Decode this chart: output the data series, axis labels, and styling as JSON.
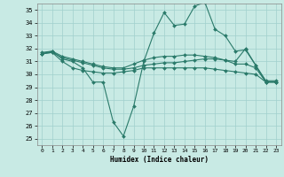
{
  "xlabel": "Humidex (Indice chaleur)",
  "ylabel": "",
  "bg_color": "#c8eae4",
  "grid_color": "#a0d0cc",
  "line_color": "#2a7a6a",
  "xlim": [
    -0.5,
    23.5
  ],
  "ylim": [
    24.5,
    35.5
  ],
  "yticks": [
    25,
    26,
    27,
    28,
    29,
    30,
    31,
    32,
    33,
    34,
    35
  ],
  "xticks": [
    0,
    1,
    2,
    3,
    4,
    5,
    6,
    7,
    8,
    9,
    10,
    11,
    12,
    13,
    14,
    15,
    16,
    17,
    18,
    19,
    20,
    21,
    22,
    23
  ],
  "lines": [
    {
      "x": [
        0,
        1,
        2,
        3,
        4,
        5,
        6,
        7,
        8,
        9,
        10,
        11,
        12,
        13,
        14,
        15,
        16,
        17,
        18,
        19,
        20,
        21,
        22,
        23
      ],
      "y": [
        31.7,
        31.8,
        31.2,
        31.0,
        30.5,
        29.4,
        29.4,
        26.3,
        25.2,
        27.5,
        31.0,
        33.2,
        34.8,
        33.8,
        33.9,
        35.3,
        35.6,
        33.5,
        33.0,
        31.8,
        31.9,
        30.7,
        29.4,
        29.4
      ]
    },
    {
      "x": [
        0,
        1,
        2,
        3,
        4,
        5,
        6,
        7,
        8,
        9,
        10,
        11,
        12,
        13,
        14,
        15,
        16,
        17,
        18,
        19,
        20,
        21,
        22,
        23
      ],
      "y": [
        31.6,
        31.8,
        31.4,
        31.2,
        31.0,
        30.8,
        30.6,
        30.5,
        30.5,
        30.8,
        31.1,
        31.3,
        31.4,
        31.4,
        31.5,
        31.5,
        31.4,
        31.3,
        31.1,
        31.0,
        32.0,
        30.7,
        29.5,
        29.5
      ]
    },
    {
      "x": [
        0,
        1,
        2,
        3,
        4,
        5,
        6,
        7,
        8,
        9,
        10,
        11,
        12,
        13,
        14,
        15,
        16,
        17,
        18,
        19,
        20,
        21,
        22,
        23
      ],
      "y": [
        31.6,
        31.7,
        31.3,
        31.1,
        30.9,
        30.7,
        30.5,
        30.4,
        30.4,
        30.5,
        30.7,
        30.8,
        30.9,
        30.9,
        31.0,
        31.1,
        31.2,
        31.2,
        31.1,
        30.8,
        30.8,
        30.5,
        29.4,
        29.4
      ]
    },
    {
      "x": [
        0,
        1,
        2,
        3,
        4,
        5,
        6,
        7,
        8,
        9,
        10,
        11,
        12,
        13,
        14,
        15,
        16,
        17,
        18,
        19,
        20,
        21,
        22,
        23
      ],
      "y": [
        31.6,
        31.7,
        31.0,
        30.5,
        30.3,
        30.2,
        30.1,
        30.1,
        30.2,
        30.3,
        30.5,
        30.5,
        30.5,
        30.5,
        30.5,
        30.5,
        30.5,
        30.4,
        30.3,
        30.2,
        30.1,
        30.0,
        29.4,
        29.4
      ]
    }
  ]
}
